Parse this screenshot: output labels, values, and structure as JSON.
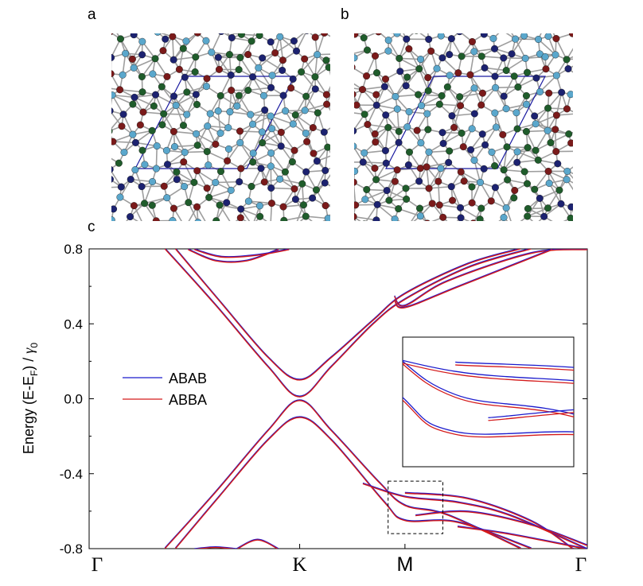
{
  "panels": {
    "a": "a",
    "b": "b",
    "c": "c"
  },
  "atom_colors": [
    "#7a1a1a",
    "#1f5c2b",
    "#1c2270",
    "#5aa7cc"
  ],
  "bond_color": "#9e9e9e",
  "cell_color": "#1a1aa0",
  "chart_data": {
    "type": "line",
    "ylabel": "Energy (E-EF) / γ0",
    "ylim": [
      -0.8,
      0.8
    ],
    "yticks": [
      "0.8",
      "0.4",
      "0.0",
      "-0.4",
      "-0.8"
    ],
    "x_ticks": [
      "Γ",
      "K",
      "M",
      "Γ"
    ],
    "x_positions": [
      0,
      1,
      1.5,
      2.366
    ],
    "legend": {
      "position": "center-left",
      "entries": [
        "ABAB",
        "ABBA"
      ]
    },
    "series": [
      {
        "name": "ABAB",
        "color": "#1a1acc",
        "bands": [
          {
            "x": [
              0.41,
              0.62,
              0.85,
              1.0,
              1.15,
              1.35,
              1.5,
              1.8,
              2.05
            ],
            "y": [
              0.8,
              0.52,
              0.22,
              0.1,
              0.22,
              0.42,
              0.56,
              0.72,
              0.8
            ]
          },
          {
            "x": [
              0.36,
              0.6,
              0.85,
              1.0,
              1.15,
              1.35,
              1.5,
              1.8,
              2.1
            ],
            "y": [
              0.8,
              0.5,
              0.17,
              0.01,
              0.17,
              0.4,
              0.53,
              0.7,
              0.8
            ]
          },
          {
            "x": [
              0.36,
              0.6,
              0.85,
              1.0,
              1.15,
              1.38,
              1.5,
              1.7,
              2.05
            ],
            "y": [
              -0.8,
              -0.5,
              -0.17,
              -0.01,
              -0.17,
              -0.45,
              -0.57,
              -0.62,
              -0.8
            ]
          },
          {
            "x": [
              0.41,
              0.62,
              0.85,
              1.0,
              1.15,
              1.4,
              1.5,
              1.75,
              2.1
            ],
            "y": [
              -0.8,
              -0.52,
              -0.22,
              -0.1,
              -0.22,
              -0.55,
              -0.65,
              -0.66,
              -0.8
            ]
          }
        ]
      },
      {
        "name": "ABBA",
        "color": "#d41a1a",
        "bands": [
          {
            "x": [
              0.41,
              0.62,
              0.85,
              1.0,
              1.15,
              1.35,
              1.5,
              1.8,
              2.05
            ],
            "y": [
              0.8,
              0.52,
              0.22,
              0.1,
              0.22,
              0.42,
              0.56,
              0.72,
              0.8
            ]
          },
          {
            "x": [
              0.36,
              0.6,
              0.85,
              1.0,
              1.15,
              1.35,
              1.5,
              1.8,
              2.1
            ],
            "y": [
              0.8,
              0.5,
              0.17,
              0.01,
              0.17,
              0.4,
              0.53,
              0.7,
              0.8
            ]
          },
          {
            "x": [
              0.36,
              0.6,
              0.85,
              1.0,
              1.15,
              1.38,
              1.5,
              1.7,
              2.05
            ],
            "y": [
              -0.8,
              -0.5,
              -0.17,
              -0.01,
              -0.17,
              -0.45,
              -0.57,
              -0.62,
              -0.8
            ]
          },
          {
            "x": [
              0.41,
              0.62,
              0.85,
              1.0,
              1.15,
              1.4,
              1.5,
              1.75,
              2.1
            ],
            "y": [
              -0.8,
              -0.52,
              -0.22,
              -0.1,
              -0.22,
              -0.55,
              -0.65,
              -0.66,
              -0.8
            ]
          }
        ]
      }
    ],
    "extra_bands": [
      {
        "x": [
          0.47,
          0.6,
          0.75,
          0.9
        ],
        "y": [
          0.8,
          0.74,
          0.74,
          0.8
        ]
      },
      {
        "x": [
          0.5,
          0.63,
          0.8,
          0.95
        ],
        "y": [
          0.8,
          0.76,
          0.77,
          0.8
        ]
      },
      {
        "x": [
          1.45,
          1.5,
          1.7,
          2.1,
          2.366
        ],
        "y": [
          0.55,
          0.5,
          0.63,
          0.78,
          0.8
        ]
      },
      {
        "x": [
          1.45,
          1.5,
          1.75,
          2.2
        ],
        "y": [
          0.53,
          0.49,
          0.6,
          0.8
        ]
      },
      {
        "x": [
          1.3,
          1.5,
          1.75,
          2.0,
          2.366
        ],
        "y": [
          -0.45,
          -0.52,
          -0.55,
          -0.62,
          -0.8
        ]
      },
      {
        "x": [
          1.5,
          1.8,
          2.1,
          2.3
        ],
        "y": [
          -0.5,
          -0.53,
          -0.65,
          -0.8
        ]
      },
      {
        "x": [
          1.55,
          1.8,
          2.1,
          2.366
        ],
        "y": [
          -0.62,
          -0.6,
          -0.67,
          -0.78
        ]
      },
      {
        "x": [
          0.5,
          0.6,
          0.7
        ],
        "y": [
          -0.8,
          -0.79,
          -0.8
        ]
      },
      {
        "x": [
          0.7,
          0.8,
          0.9
        ],
        "y": [
          -0.8,
          -0.75,
          -0.8
        ]
      },
      {
        "x": [
          1.75,
          2.0,
          2.366
        ],
        "y": [
          -0.68,
          -0.72,
          -0.8
        ]
      }
    ],
    "zoom_box": {
      "x": [
        1.42,
        1.68
      ],
      "y": [
        -0.72,
        -0.44
      ]
    }
  }
}
